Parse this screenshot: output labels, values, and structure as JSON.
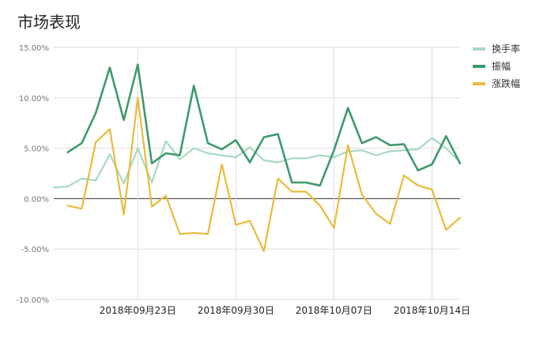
{
  "chart_data": {
    "type": "line",
    "title": "市场表现",
    "xlabel": "",
    "ylabel": "",
    "ylim": [
      -10,
      15
    ],
    "y_ticks": [
      "15.00%",
      "10.00%",
      "5.00%",
      "0.00%",
      "-5.00%",
      "-10.00%"
    ],
    "y_tick_values": [
      15,
      10,
      5,
      0,
      -5,
      -10
    ],
    "x_tick_labels": [
      "2018年09月23日",
      "2018年09月30日",
      "2018年10月07日",
      "2018年10月14日"
    ],
    "x_tick_index": [
      6,
      13,
      20,
      27
    ],
    "grid": true,
    "legend_position": "top-right",
    "x": [
      "09-17",
      "09-18",
      "09-19",
      "09-20",
      "09-21",
      "09-22",
      "09-23",
      "09-24",
      "09-25",
      "09-26",
      "09-27",
      "09-28",
      "09-29",
      "09-30",
      "10-01",
      "10-02",
      "10-03",
      "10-04",
      "10-05",
      "10-06",
      "10-07",
      "10-08",
      "10-09",
      "10-10",
      "10-11",
      "10-12",
      "10-13",
      "10-14",
      "10-15",
      "10-16"
    ],
    "series": [
      {
        "name": "换手率",
        "color": "#a6d9c4",
        "values": [
          1.1,
          1.2,
          2.0,
          1.8,
          4.4,
          1.5,
          5.0,
          1.6,
          5.7,
          3.9,
          5.0,
          4.5,
          4.3,
          4.1,
          5.1,
          3.8,
          3.6,
          4.0,
          4.0,
          4.3,
          4.1,
          4.7,
          4.8,
          4.3,
          4.7,
          4.8,
          4.9,
          6.0,
          5.0,
          3.6
        ]
      },
      {
        "name": "振幅",
        "color": "#3e9a6c",
        "values": [
          null,
          4.6,
          5.5,
          8.5,
          13.0,
          7.8,
          13.3,
          3.5,
          4.5,
          4.3,
          11.2,
          5.5,
          4.9,
          5.8,
          3.6,
          6.1,
          6.4,
          1.6,
          1.6,
          1.3,
          4.8,
          9.0,
          5.5,
          6.1,
          5.3,
          5.4,
          2.8,
          3.4,
          6.2,
          3.5
        ]
      },
      {
        "name": "涨跌幅",
        "color": "#eabb3a",
        "values": [
          null,
          -0.7,
          -1.0,
          5.6,
          6.9,
          -1.6,
          10.0,
          -0.8,
          0.3,
          -3.5,
          -3.4,
          -3.5,
          3.4,
          -2.6,
          -2.2,
          -5.2,
          2.0,
          0.7,
          0.7,
          -0.7,
          -2.9,
          5.3,
          0.4,
          -1.5,
          -2.5,
          2.3,
          1.3,
          0.9,
          -3.1,
          -1.9
        ]
      }
    ]
  }
}
